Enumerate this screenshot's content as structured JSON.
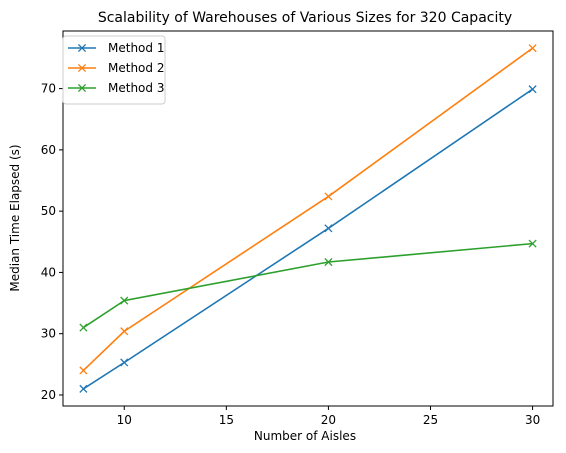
{
  "chart_data": {
    "type": "line",
    "title": "Scalability of Warehouses of Various Sizes for 320 Capacity",
    "xlabel": "Number of Aisles",
    "ylabel": "Median Time Elapsed (s)",
    "x": [
      8,
      10,
      20,
      30
    ],
    "xlim": [
      7.0,
      31.0
    ],
    "ylim": [
      18.2,
      79.4
    ],
    "xticks": [
      10,
      15,
      20,
      25,
      30
    ],
    "yticks": [
      20,
      30,
      40,
      50,
      60,
      70
    ],
    "grid": false,
    "legend_position": "upper left",
    "marker": "x",
    "series": [
      {
        "name": "Method 1",
        "color": "#1f77b4",
        "values": [
          21.0,
          25.3,
          47.2,
          69.9
        ]
      },
      {
        "name": "Method 2",
        "color": "#ff7f0e",
        "values": [
          24.0,
          30.4,
          52.4,
          76.6
        ]
      },
      {
        "name": "Method 3",
        "color": "#2ca02c",
        "values": [
          31.0,
          35.4,
          41.7,
          44.7
        ]
      }
    ]
  }
}
